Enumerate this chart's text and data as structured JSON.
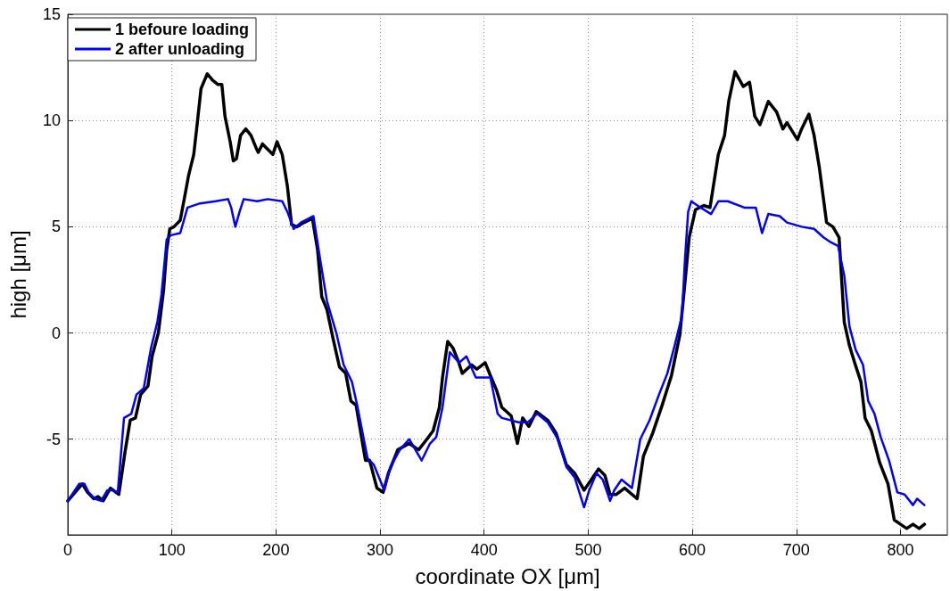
{
  "chart_data": {
    "type": "line",
    "xlabel": "coordinate OX [μm]",
    "ylabel": "high [μm]",
    "xlim": [
      0,
      845
    ],
    "xticks": [
      0,
      100,
      200,
      300,
      400,
      500,
      600,
      700,
      800
    ],
    "ylim": [
      -9.5,
      15
    ],
    "yticks": [
      -5,
      0,
      5,
      10,
      15
    ],
    "grid": true,
    "legend": "top left",
    "marker": "none",
    "line_style": "solid",
    "series": [
      {
        "name": "1 befoure loading",
        "color": "#000000",
        "x": [
          0,
          14,
          19,
          25,
          29,
          34,
          41,
          49,
          55,
          60,
          65,
          70,
          77,
          81,
          87,
          92,
          95,
          98,
          102,
          108,
          113,
          116,
          121,
          124,
          128,
          134,
          139,
          144,
          148,
          151,
          156,
          159,
          162,
          166,
          171,
          176,
          181,
          183,
          187,
          191,
          197,
          201,
          206,
          211,
          215,
          220,
          227,
          235,
          240,
          244,
          249,
          255,
          261,
          267,
          272,
          277,
          286,
          290,
          297,
          303,
          308,
          317,
          328,
          337,
          345,
          351,
          357,
          360,
          365,
          370,
          375,
          379,
          388,
          393,
          401,
          406,
          412,
          417,
          426,
          432,
          437,
          443,
          450,
          461,
          469,
          479,
          487,
          496,
          503,
          510,
          516,
          521,
          527,
          535,
          547,
          553,
          562,
          571,
          580,
          588,
          593,
          597,
          603,
          611,
          617,
          625,
          631,
          635,
          641,
          649,
          655,
          660,
          665,
          673,
          681,
          687,
          691,
          701,
          705,
          712,
          717,
          722,
          729,
          735,
          741,
          746,
          751,
          756,
          762,
          766,
          772,
          780,
          788,
          794,
          800,
          806,
          812,
          818,
          823
        ],
        "values": [
          -7.9,
          -7.1,
          -7.5,
          -7.8,
          -7.7,
          -7.9,
          -7.3,
          -7.6,
          -5.6,
          -4.1,
          -4.0,
          -2.9,
          -2.5,
          -1.1,
          0.0,
          2.0,
          3.9,
          4.9,
          5.0,
          5.3,
          6.6,
          7.4,
          8.4,
          9.7,
          11.5,
          12.2,
          11.9,
          11.7,
          11.7,
          10.2,
          9.0,
          8.1,
          8.2,
          9.3,
          9.6,
          9.3,
          8.7,
          8.5,
          8.9,
          8.7,
          8.4,
          9.0,
          8.4,
          6.9,
          5.1,
          5.0,
          5.2,
          5.4,
          3.9,
          1.7,
          1.1,
          -0.3,
          -1.6,
          -1.9,
          -3.2,
          -3.4,
          -6.0,
          -6.0,
          -7.3,
          -7.5,
          -6.6,
          -5.5,
          -5.2,
          -5.5,
          -5.0,
          -4.6,
          -3.5,
          -2.1,
          -0.4,
          -0.7,
          -1.3,
          -1.9,
          -1.5,
          -1.7,
          -1.4,
          -2.0,
          -2.7,
          -3.5,
          -3.9,
          -5.2,
          -4.0,
          -4.4,
          -3.7,
          -4.1,
          -4.7,
          -6.2,
          -6.6,
          -7.4,
          -6.9,
          -6.4,
          -6.7,
          -7.6,
          -7.6,
          -7.3,
          -7.8,
          -5.8,
          -4.7,
          -3.4,
          -2.0,
          -0.1,
          2.4,
          4.5,
          5.8,
          6.0,
          5.9,
          8.4,
          9.3,
          10.9,
          12.3,
          11.6,
          11.8,
          10.2,
          9.8,
          10.9,
          10.4,
          9.6,
          9.9,
          9.1,
          9.6,
          10.3,
          9.3,
          7.8,
          5.2,
          5.0,
          4.5,
          0.5,
          -0.6,
          -1.4,
          -2.3,
          -4.0,
          -4.6,
          -6.1,
          -7.1,
          -8.8,
          -9.0,
          -9.2,
          -9.0,
          -9.2,
          -9.0
        ]
      },
      {
        "name": "2 after unloading",
        "color": "#0000ff",
        "x": [
          0,
          11,
          16,
          20,
          26,
          32,
          38,
          43,
          48,
          54,
          61,
          66,
          73,
          80,
          86,
          90,
          95,
          99,
          108,
          115,
          127,
          142,
          154,
          157,
          161,
          165,
          169,
          182,
          192,
          206,
          211,
          217,
          224,
          236,
          242,
          249,
          258,
          265,
          273,
          278,
          288,
          294,
          304,
          310,
          319,
          328,
          340,
          348,
          354,
          360,
          367,
          376,
          383,
          392,
          406,
          413,
          417,
          433,
          442,
          451,
          461,
          471,
          479,
          487,
          496,
          501,
          508,
          514,
          521,
          525,
          532,
          542,
          550,
          559,
          568,
          576,
          583,
          590,
          593,
          596,
          599,
          608,
          618,
          625,
          634,
          650,
          661,
          667,
          673,
          684,
          691,
          705,
          717,
          726,
          732,
          740,
          746,
          751,
          757,
          764,
          769,
          775,
          781,
          789,
          797,
          804,
          812,
          816,
          823
        ],
        "values": [
          -7.9,
          -7.1,
          -7.1,
          -7.5,
          -7.8,
          -7.9,
          -7.4,
          -7.4,
          -7.5,
          -4.0,
          -3.8,
          -2.9,
          -2.6,
          -0.7,
          0.5,
          1.8,
          4.4,
          4.6,
          4.7,
          5.9,
          6.1,
          6.2,
          6.3,
          5.9,
          5.0,
          5.7,
          6.3,
          6.2,
          6.3,
          6.2,
          5.7,
          4.9,
          5.2,
          5.5,
          3.6,
          1.5,
          0.0,
          -1.5,
          -2.3,
          -3.4,
          -5.9,
          -6.2,
          -7.4,
          -6.3,
          -5.5,
          -5.0,
          -6.0,
          -5.2,
          -4.9,
          -3.5,
          -0.9,
          -1.4,
          -1.1,
          -2.1,
          -2.1,
          -3.8,
          -4.0,
          -4.2,
          -4.2,
          -3.8,
          -4.2,
          -5.0,
          -6.3,
          -6.8,
          -8.2,
          -7.4,
          -6.6,
          -6.9,
          -7.9,
          -7.4,
          -6.9,
          -7.3,
          -5.0,
          -4.1,
          -2.9,
          -1.9,
          -0.6,
          0.8,
          3.5,
          5.7,
          6.2,
          5.9,
          5.6,
          6.2,
          6.2,
          5.9,
          5.9,
          4.7,
          5.6,
          5.5,
          5.2,
          5.0,
          4.9,
          4.5,
          4.3,
          4.1,
          2.7,
          0.3,
          -0.8,
          -1.5,
          -3.2,
          -3.8,
          -4.9,
          -6.0,
          -7.5,
          -7.6,
          -8.1,
          -7.8,
          -8.1
        ]
      }
    ]
  }
}
